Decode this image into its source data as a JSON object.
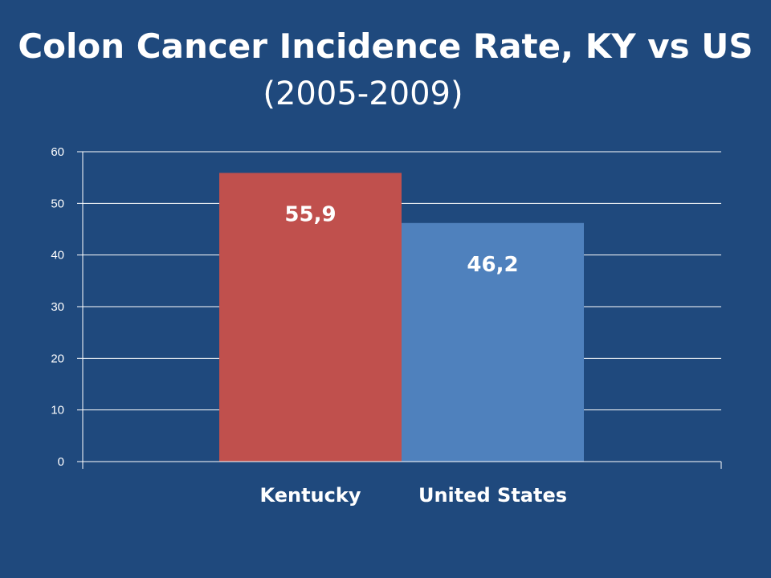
{
  "slide": {
    "title": "Colon Cancer Incidence Rate, KY vs US",
    "subtitle": "(2005-2009)"
  },
  "chart_data": {
    "type": "bar",
    "title": "Colon Cancer Incidence Rate, KY vs US",
    "subtitle": "(2005-2009)",
    "categories": [
      "Kentucky",
      "United States"
    ],
    "values": [
      55.9,
      46.2
    ],
    "data_labels": [
      "55,9",
      "46,2"
    ],
    "bar_colors": [
      "#c0504d",
      "#4f81bd"
    ],
    "xlabel": "",
    "ylabel": "",
    "ylim": [
      0,
      60
    ],
    "yticks": [
      0,
      10,
      20,
      30,
      40,
      50,
      60
    ],
    "grid": true,
    "legend": "none",
    "colors": {
      "background": "#1f497d",
      "text": "#ffffff",
      "gridline": "#ffffff"
    }
  }
}
